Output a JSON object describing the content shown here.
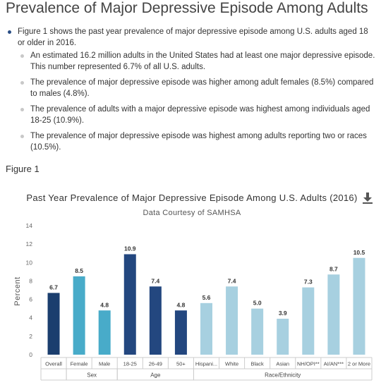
{
  "page": {
    "title": "Prevalence of Major Depressive Episode Among Adults",
    "bullet": "Figure 1 shows the past year prevalence of major depressive episode among U.S. adults aged 18 or older in 2016.",
    "sub_bullets": [
      "An estimated 16.2 million adults in the United States had at least one major depressive episode. This number represented 6.7% of all U.S. adults.",
      "The prevalence of major depressive episode was higher among adult females (8.5%) compared to males (4.8%).",
      "The prevalence of adults with a major depressive episode was highest among individuals aged 18-25 (10.9%).",
      "The prevalence of major depressive episode was highest among adults reporting two or races (10.5%)."
    ],
    "figure_label": "Figure 1"
  },
  "download_icon": "download-icon",
  "chart_data": {
    "type": "bar",
    "title": "Past Year Prevalence of Major Depressive Episode Among U.S. Adults (2016)",
    "subtitle": "Data Courtesy of SAMHSA",
    "ylabel": "Percent",
    "ylim": [
      0,
      14
    ],
    "yticks": [
      0,
      2,
      4,
      6,
      8,
      10,
      12,
      14
    ],
    "grid": false,
    "categories": [
      "Overall",
      "Female",
      "Male",
      "18-25",
      "26-49",
      "50+",
      "Hispani...",
      "White",
      "Black",
      "Asian",
      "NH/OPI**",
      "AI/AN***",
      "2 or More"
    ],
    "values": [
      6.7,
      8.5,
      4.8,
      10.9,
      7.4,
      4.8,
      5.6,
      7.4,
      5.0,
      3.9,
      7.3,
      8.7,
      10.5
    ],
    "value_labels": [
      "6.7",
      "8.5",
      "4.8",
      "10.9",
      "7.4",
      "4.8",
      "5.6",
      "7.4",
      "5.0",
      "3.9",
      "7.3",
      "8.7",
      "10.5"
    ],
    "colors": [
      "#1b3e6e",
      "#48abc9",
      "#48abc9",
      "#23477f",
      "#23477f",
      "#23477f",
      "#a7d0e0",
      "#a7d0e0",
      "#a7d0e0",
      "#a7d0e0",
      "#a7d0e0",
      "#a7d0e0",
      "#a7d0e0"
    ],
    "groups": [
      {
        "label": "",
        "start": 0,
        "end": 0
      },
      {
        "label": "Sex",
        "start": 1,
        "end": 2
      },
      {
        "label": "Age",
        "start": 3,
        "end": 5
      },
      {
        "label": "Race/Ethnicity",
        "start": 6,
        "end": 12
      }
    ]
  }
}
